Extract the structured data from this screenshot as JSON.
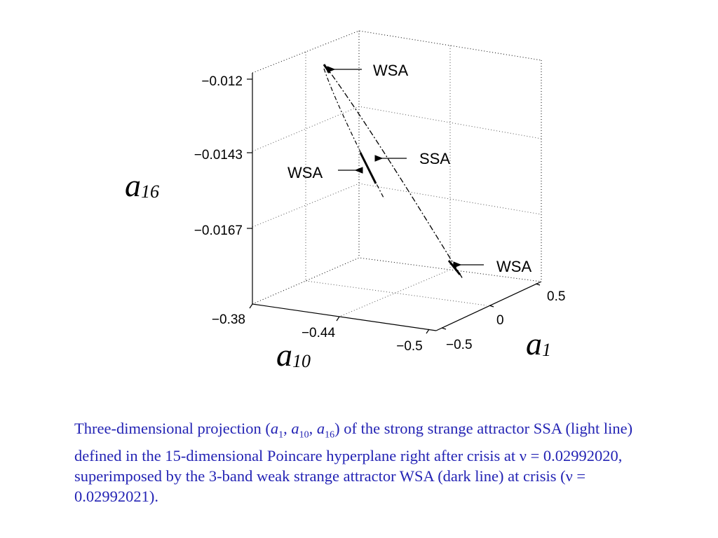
{
  "chart_data": {
    "type": "line3d",
    "axes": {
      "x": {
        "symbol": "a",
        "subscript": "1",
        "ticks": [
          "-0.5",
          "0",
          "0.5"
        ],
        "range": [
          -0.5,
          0.5
        ]
      },
      "y": {
        "symbol": "a",
        "subscript": "10",
        "ticks": [
          "-0.38",
          "-0.44",
          "-0.5"
        ],
        "range": [
          -0.5,
          -0.38
        ]
      },
      "z": {
        "symbol": "a",
        "subscript": "16",
        "ticks": [
          "-0.012",
          "-0.0143",
          "-0.0167"
        ],
        "range": [
          -0.0185,
          -0.012
        ]
      }
    },
    "grid": true,
    "series": [
      {
        "name": "SSA",
        "style": "light dashed line"
      },
      {
        "name": "WSA",
        "style": "dark line"
      }
    ],
    "annotations": [
      "WSA",
      "SSA",
      "WSA",
      "WSA"
    ]
  },
  "caption": {
    "pre": "Three-dimensional projection (",
    "v1": "a",
    "s1": "1",
    "sep1": ", ",
    "v2": "a",
    "s2": "10",
    "sep2": ", ",
    "v3": "a",
    "s3": "16",
    "post": ") of the strong strange attractor SSA (light line) defined in the 15-dimensional Poincare hyperplane right after crisis at ν = 0.02992020, superimposed by the 3-band weak strange attractor WSA (dark line) at crisis (ν = 0.02992021)."
  },
  "colors": {
    "caption": "#2323b4",
    "plot": "#000000"
  }
}
